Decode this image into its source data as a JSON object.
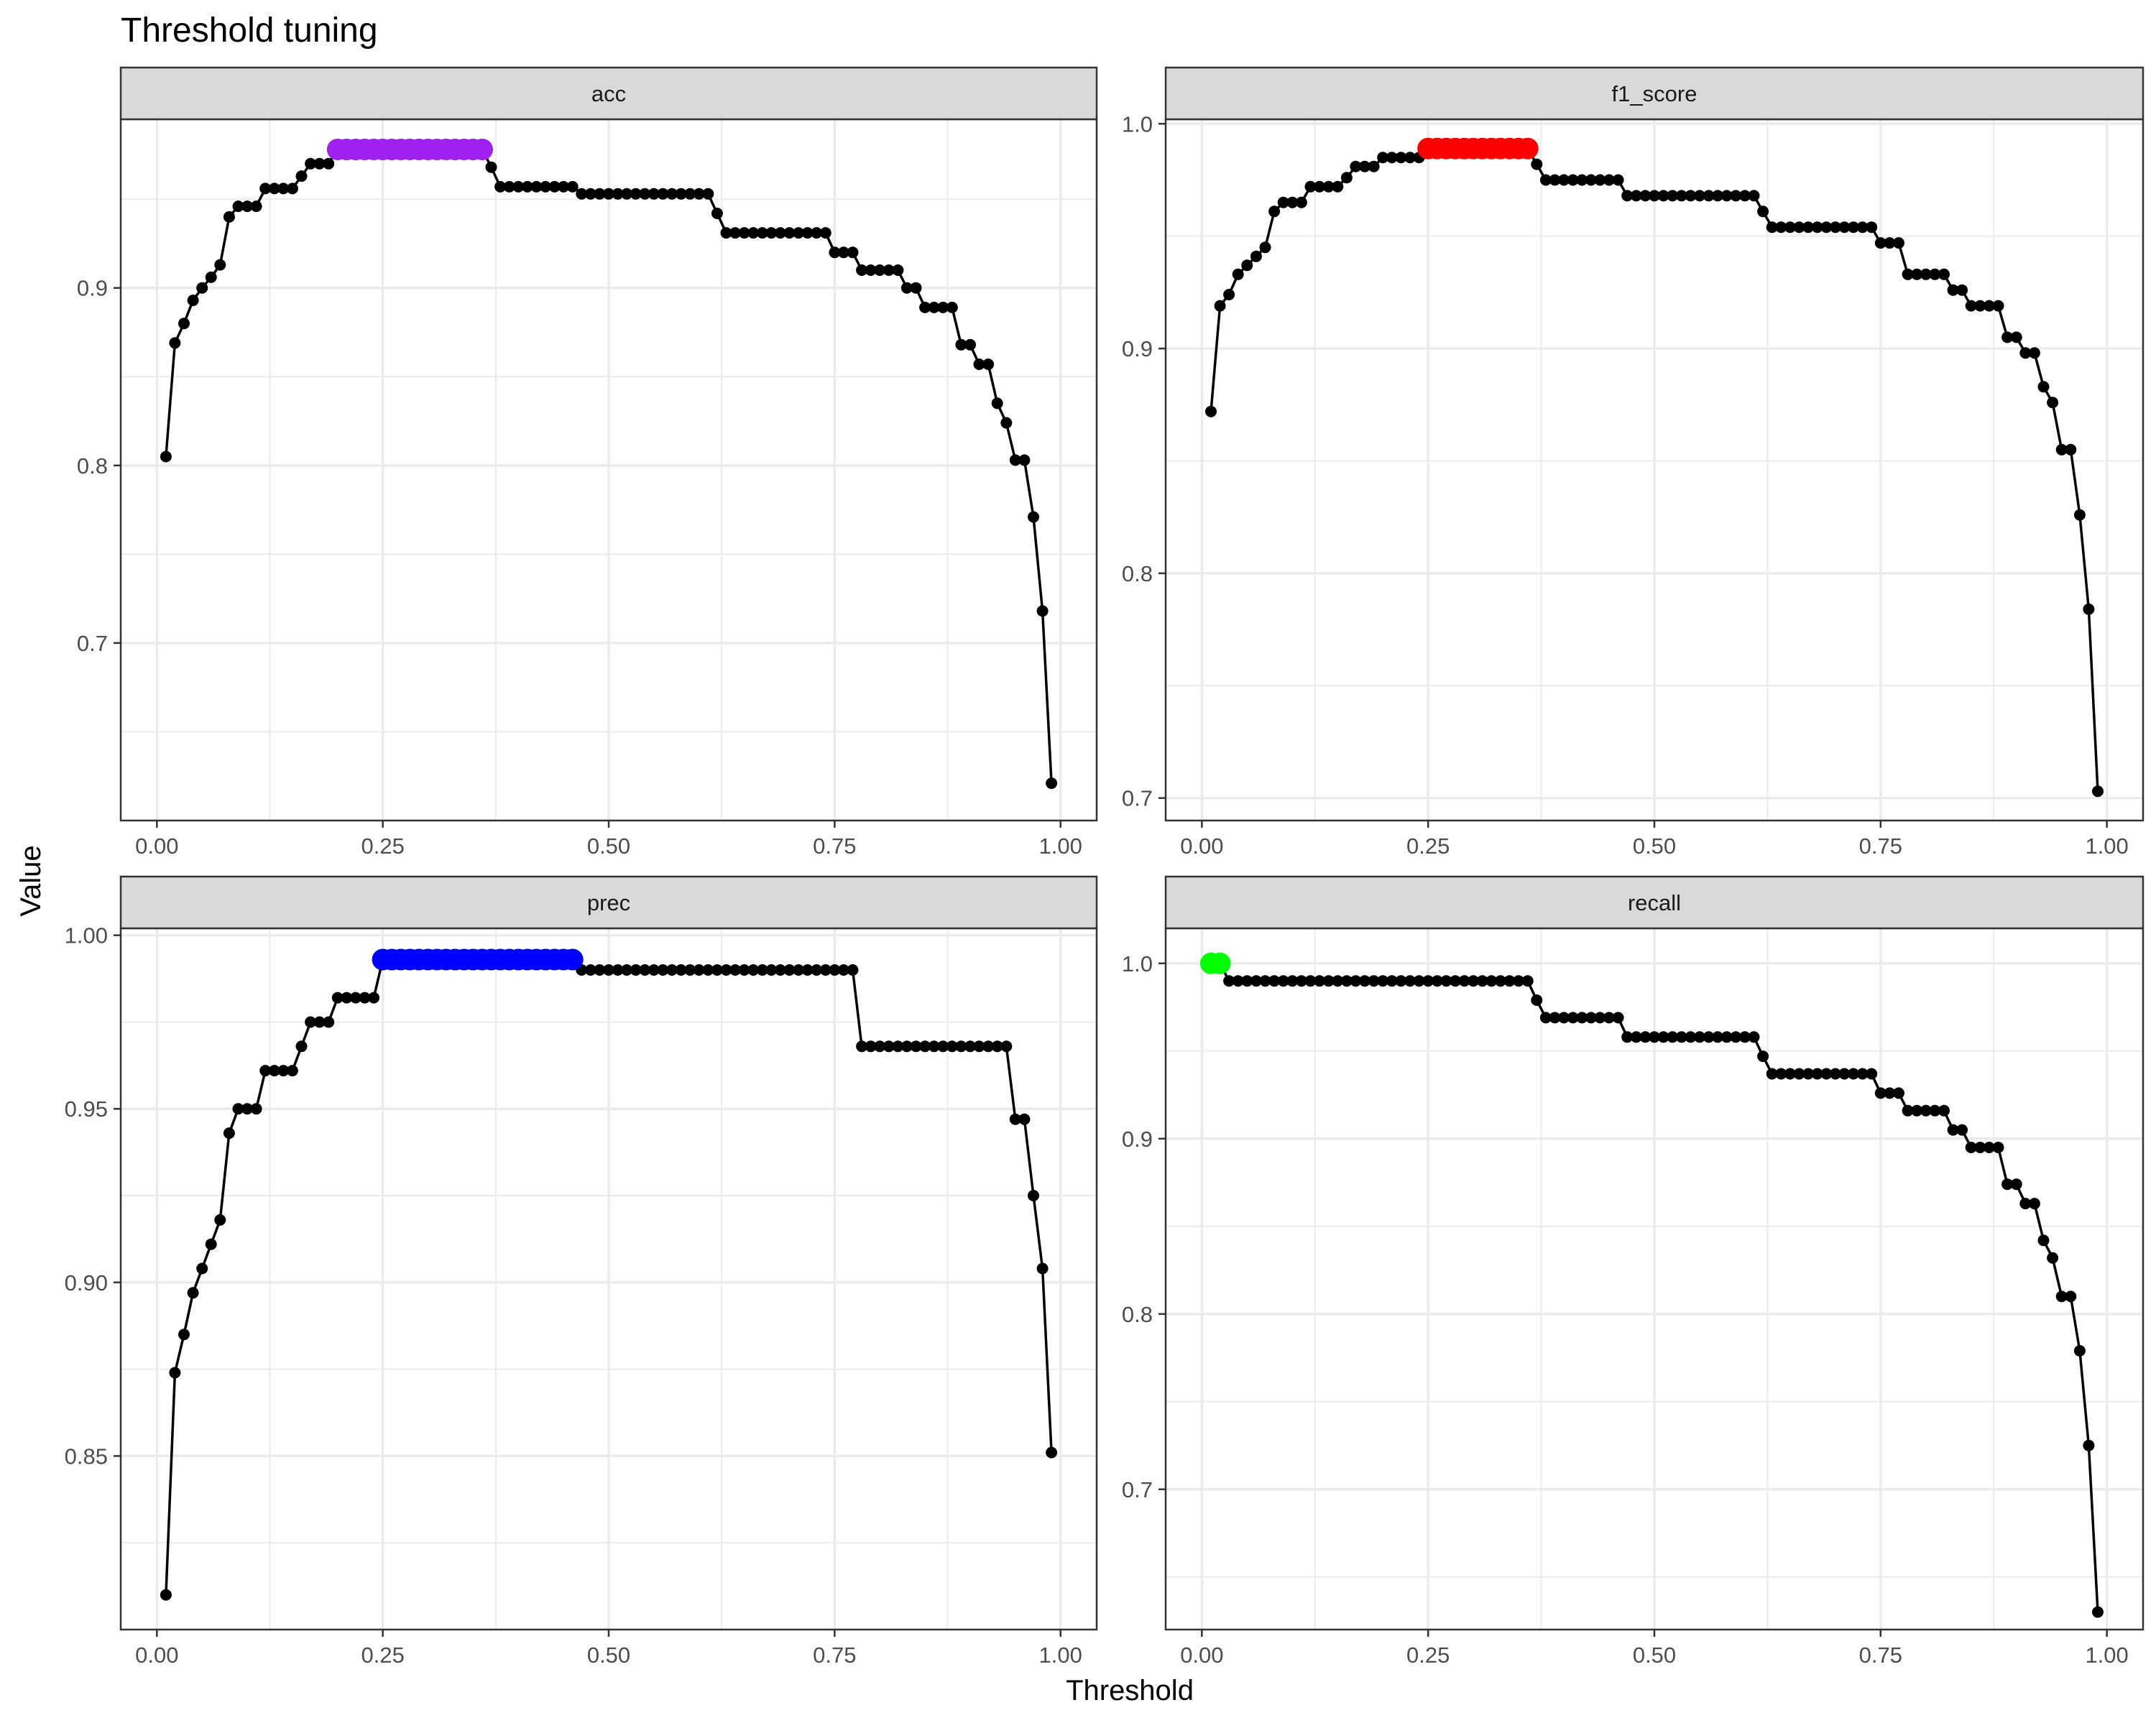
{
  "title": "Threshold tuning",
  "xlabel": "Threshold",
  "ylabel": "Value",
  "colors": {
    "line": "#000000",
    "grid": "#ebebeb",
    "panel_border": "#333333",
    "strip_bg": "#d9d9d9",
    "highlights": {
      "acc": "#a020f0",
      "f1_score": "#ff0000",
      "prec": "#0000ff",
      "recall": "#00ff00"
    }
  },
  "chart_data": {
    "type": "line",
    "layout": "facet_wrap 2x2, free y scales",
    "x_ticks": [
      0,
      0.25,
      0.5,
      0.75,
      1
    ],
    "x_tick_labels": [
      "0.00",
      "0.25",
      "0.50",
      "0.75",
      "1.00"
    ],
    "xlim": [
      -0.04,
      1.04
    ],
    "panels": [
      {
        "name": "acc",
        "highlight_color": "#a020f0",
        "ylim": [
          0.6,
          0.995
        ],
        "y_ticks": [
          0.7,
          0.8,
          0.9
        ],
        "y_tick_labels": [
          "0.7",
          "0.8",
          "0.9"
        ],
        "highlight_range": [
          0.2,
          0.36
        ],
        "steps": [
          [
            0.01,
            0.805
          ],
          [
            0.02,
            0.869
          ],
          [
            0.03,
            0.88
          ],
          [
            0.04,
            0.893
          ],
          [
            0.05,
            0.9
          ],
          [
            0.06,
            0.906
          ],
          [
            0.07,
            0.913
          ],
          [
            0.08,
            0.94
          ],
          [
            0.09,
            0.946
          ],
          [
            0.12,
            0.956
          ],
          [
            0.16,
            0.963
          ],
          [
            0.17,
            0.97
          ],
          [
            0.2,
            0.978
          ],
          [
            0.37,
            0.968
          ],
          [
            0.38,
            0.957
          ],
          [
            0.47,
            0.953
          ],
          [
            0.62,
            0.942
          ],
          [
            0.63,
            0.931
          ],
          [
            0.75,
            0.92
          ],
          [
            0.78,
            0.91
          ],
          [
            0.83,
            0.9
          ],
          [
            0.85,
            0.889
          ],
          [
            0.89,
            0.868
          ],
          [
            0.91,
            0.857
          ],
          [
            0.93,
            0.835
          ],
          [
            0.94,
            0.824
          ],
          [
            0.95,
            0.803
          ],
          [
            0.97,
            0.771
          ],
          [
            0.98,
            0.718
          ],
          [
            0.99,
            0.621
          ]
        ]
      },
      {
        "name": "f1_score",
        "highlight_color": "#ff0000",
        "ylim": [
          0.69,
          1.002
        ],
        "y_ticks": [
          0.7,
          0.8,
          0.9,
          1.0
        ],
        "y_tick_labels": [
          "0.7",
          "0.8",
          "0.9",
          "1.0"
        ],
        "highlight_range": [
          0.25,
          0.36
        ],
        "steps": [
          [
            0.01,
            0.872
          ],
          [
            0.02,
            0.919
          ],
          [
            0.03,
            0.924
          ],
          [
            0.04,
            0.933
          ],
          [
            0.05,
            0.937
          ],
          [
            0.06,
            0.941
          ],
          [
            0.07,
            0.945
          ],
          [
            0.08,
            0.961
          ],
          [
            0.09,
            0.965
          ],
          [
            0.12,
            0.972
          ],
          [
            0.16,
            0.976
          ],
          [
            0.17,
            0.981
          ],
          [
            0.2,
            0.985
          ],
          [
            0.25,
            0.989
          ],
          [
            0.37,
            0.982
          ],
          [
            0.38,
            0.975
          ],
          [
            0.47,
            0.968
          ],
          [
            0.62,
            0.961
          ],
          [
            0.63,
            0.954
          ],
          [
            0.75,
            0.947
          ],
          [
            0.78,
            0.933
          ],
          [
            0.83,
            0.926
          ],
          [
            0.85,
            0.919
          ],
          [
            0.89,
            0.905
          ],
          [
            0.91,
            0.898
          ],
          [
            0.93,
            0.883
          ],
          [
            0.94,
            0.876
          ],
          [
            0.95,
            0.855
          ],
          [
            0.97,
            0.826
          ],
          [
            0.98,
            0.784
          ],
          [
            0.99,
            0.703
          ]
        ]
      },
      {
        "name": "prec",
        "highlight_color": "#0000ff",
        "ylim": [
          0.8,
          1.002
        ],
        "y_ticks": [
          0.85,
          0.9,
          0.95,
          1.0
        ],
        "y_tick_labels": [
          "0.85",
          "0.90",
          "0.95",
          "1.00"
        ],
        "highlight_range": [
          0.25,
          0.46
        ],
        "steps": [
          [
            0.01,
            0.81
          ],
          [
            0.02,
            0.874
          ],
          [
            0.03,
            0.885
          ],
          [
            0.04,
            0.897
          ],
          [
            0.05,
            0.904
          ],
          [
            0.06,
            0.911
          ],
          [
            0.07,
            0.918
          ],
          [
            0.08,
            0.943
          ],
          [
            0.09,
            0.95
          ],
          [
            0.12,
            0.961
          ],
          [
            0.16,
            0.968
          ],
          [
            0.17,
            0.975
          ],
          [
            0.2,
            0.982
          ],
          [
            0.25,
            0.993
          ],
          [
            0.47,
            0.99
          ],
          [
            0.78,
            0.968
          ],
          [
            0.95,
            0.947
          ],
          [
            0.97,
            0.925
          ],
          [
            0.98,
            0.904
          ],
          [
            0.99,
            0.851
          ]
        ]
      },
      {
        "name": "recall",
        "highlight_color": "#00ff00",
        "ylim": [
          0.62,
          1.02
        ],
        "y_ticks": [
          0.7,
          0.8,
          0.9,
          1.0
        ],
        "y_tick_labels": [
          "0.7",
          "0.8",
          "0.9",
          "1.0"
        ],
        "highlight_range": [
          0.01,
          0.02
        ],
        "steps": [
          [
            0.01,
            1.0
          ],
          [
            0.03,
            0.99
          ],
          [
            0.37,
            0.979
          ],
          [
            0.38,
            0.969
          ],
          [
            0.47,
            0.958
          ],
          [
            0.62,
            0.947
          ],
          [
            0.63,
            0.937
          ],
          [
            0.75,
            0.926
          ],
          [
            0.78,
            0.916
          ],
          [
            0.83,
            0.905
          ],
          [
            0.85,
            0.895
          ],
          [
            0.89,
            0.874
          ],
          [
            0.91,
            0.863
          ],
          [
            0.93,
            0.842
          ],
          [
            0.94,
            0.832
          ],
          [
            0.95,
            0.81
          ],
          [
            0.97,
            0.779
          ],
          [
            0.98,
            0.725
          ],
          [
            0.99,
            0.63
          ]
        ]
      }
    ]
  }
}
